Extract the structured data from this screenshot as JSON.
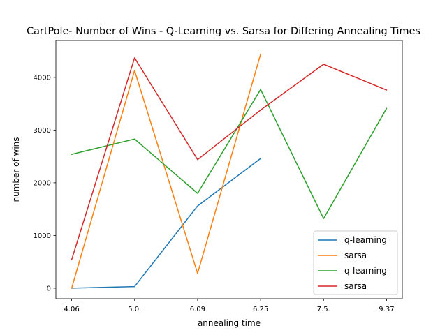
{
  "chart_data": {
    "type": "line",
    "title": "CartPole- Number of Wins - Q-Learning vs. Sarsa for Differing Annealing Times",
    "xlabel": "annealing time",
    "ylabel": "number of wins",
    "categories": [
      "4.06",
      "5.0.",
      "6.09",
      "6.25",
      "7.5.",
      "9.37"
    ],
    "yticks": [
      0,
      1000,
      2000,
      3000,
      4000
    ],
    "ylim": [
      -200,
      4700
    ],
    "grid": false,
    "legend_position": "lower-right",
    "series": [
      {
        "name": "q-learning",
        "color": "#1f77b4",
        "values": [
          0,
          30,
          1560,
          2460,
          null,
          null
        ]
      },
      {
        "name": "sarsa",
        "color": "#ff7f0e",
        "values": [
          0,
          4130,
          280,
          4440,
          null,
          null
        ]
      },
      {
        "name": "q-learning",
        "color": "#2ca02c",
        "values": [
          2540,
          2830,
          1800,
          3770,
          1320,
          3410
        ]
      },
      {
        "name": "sarsa",
        "color": "#d62728",
        "values": [
          540,
          4370,
          2440,
          3380,
          4250,
          3760
        ]
      }
    ]
  }
}
